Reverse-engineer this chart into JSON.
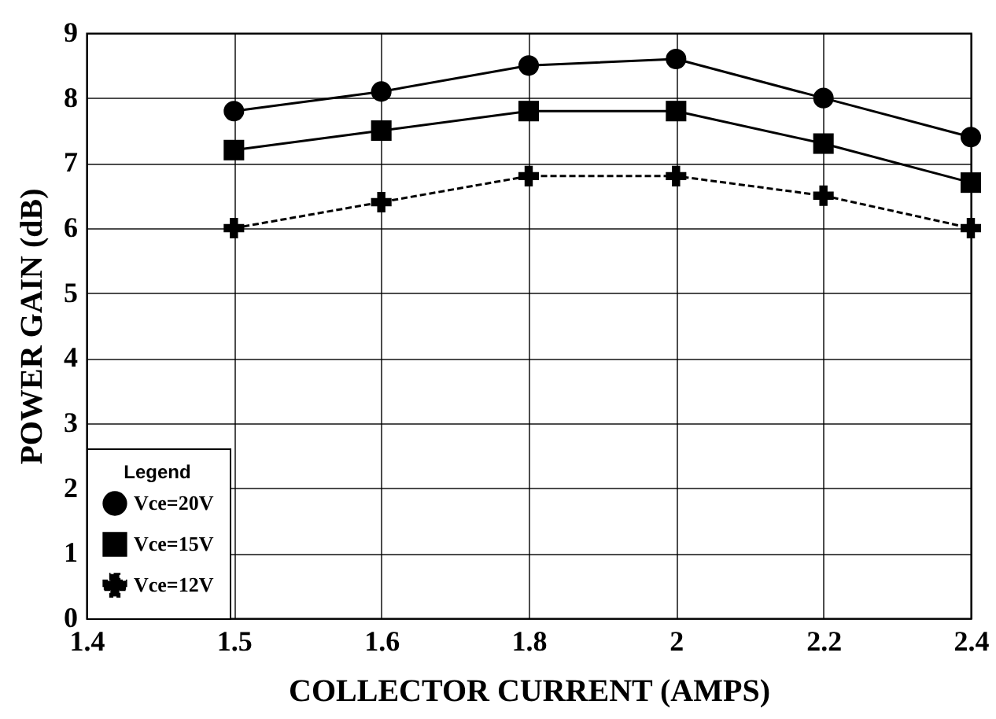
{
  "chart_data": {
    "type": "line",
    "xlabel": "COLLECTOR CURRENT (AMPS)",
    "ylabel": "POWER GAIN (dB)",
    "legend_title": "Legend",
    "categories": [
      "1.4",
      "1.5",
      "1.6",
      "1.8",
      "2",
      "2.2",
      "2.4"
    ],
    "series": [
      {
        "name": "Vce=20V",
        "color": "#000000",
        "marker": "circle",
        "line_style": "solid",
        "values": [
          null,
          7.8,
          8.1,
          8.5,
          8.6,
          8.0,
          7.4
        ]
      },
      {
        "name": "Vce=15V",
        "color": "#000000",
        "marker": "square",
        "line_style": "solid",
        "values": [
          null,
          7.2,
          7.5,
          7.8,
          7.8,
          7.3,
          6.7
        ]
      },
      {
        "name": "Vce=12V",
        "color": "#000000",
        "marker": "cross",
        "line_style": "dashed",
        "values": [
          null,
          6.0,
          6.4,
          6.8,
          6.8,
          6.5,
          6.0
        ]
      }
    ],
    "ylim": [
      0,
      9
    ],
    "yticks": [
      0,
      1,
      2,
      3,
      4,
      5,
      6,
      7,
      8,
      9
    ],
    "grid": true,
    "legend": "bottom left"
  }
}
